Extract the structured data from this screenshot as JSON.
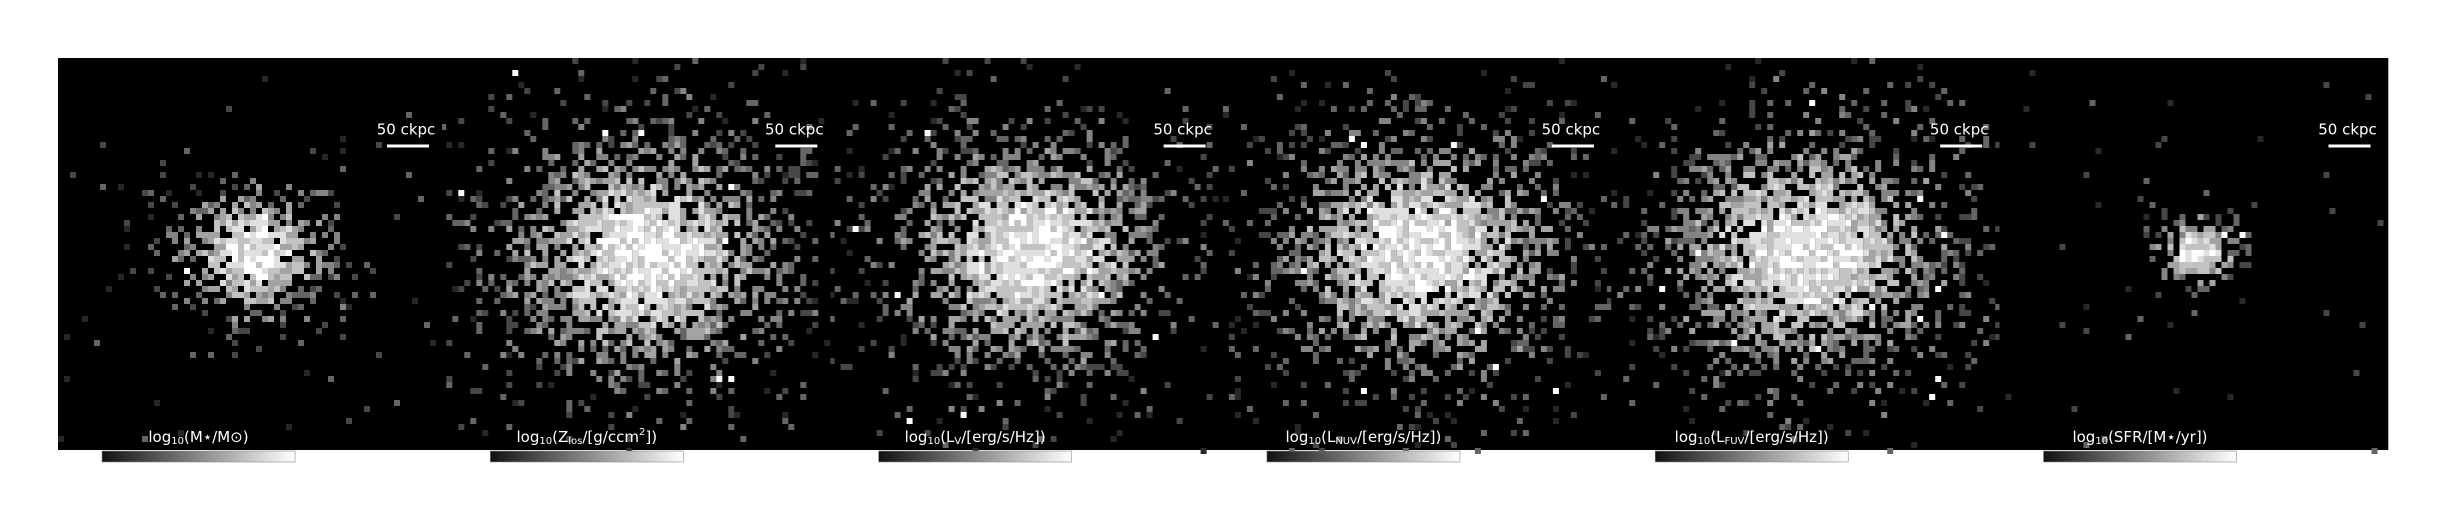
{
  "panels": [
    {
      "scalebar": "50 ckpc",
      "colorbar": {
        "label": [
          {
            "text": "log"
          },
          {
            "text": "10",
            "sub": true
          },
          {
            "text": "(M⋆/M⊙)"
          }
        ],
        "lim": [
          6.1,
          10.4
        ],
        "ticks": [
          8,
          10
        ]
      }
    },
    {
      "scalebar": "50 ckpc",
      "colorbar": {
        "label": [
          {
            "text": "log"
          },
          {
            "text": "10",
            "sub": true
          },
          {
            "text": "(Z"
          },
          {
            "text": "los",
            "sub": true
          },
          {
            "text": "/[g/ccm"
          },
          {
            "text": "2",
            "sup": true
          },
          {
            "text": "])"
          }
        ],
        "lim": [
          -10.6,
          2.0
        ],
        "ticks": [
          {
            "value": -10,
            "label": "−10"
          },
          {
            "value": -5,
            "label": "−5"
          },
          0
        ]
      }
    },
    {
      "scalebar": "50 ckpc",
      "colorbar": {
        "label": [
          {
            "text": "log"
          },
          {
            "text": "10",
            "sub": true
          },
          {
            "text": "(L"
          },
          {
            "text": "V",
            "sub": true
          },
          {
            "text": "/[erg/s/Hz])"
          }
        ],
        "lim": [
          25.16,
          28.0
        ],
        "ticks": [
          26,
          27
        ]
      }
    },
    {
      "scalebar": "50 ckpc",
      "colorbar": {
        "label": [
          {
            "text": "log"
          },
          {
            "text": "10",
            "sub": true
          },
          {
            "text": "(L"
          },
          {
            "text": "NUV",
            "sub": true
          },
          {
            "text": "/[erg/s/Hz])"
          }
        ],
        "lim": [
          24.15,
          27.65
        ],
        "ticks": [
          25,
          26,
          27
        ]
      }
    },
    {
      "scalebar": "50 ckpc",
      "colorbar": {
        "label": [
          {
            "text": "log"
          },
          {
            "text": "10",
            "sub": true
          },
          {
            "text": "(L"
          },
          {
            "text": "FUV",
            "sub": true
          },
          {
            "text": "/[erg/s/Hz])"
          }
        ],
        "lim": [
          23.7,
          27.6
        ],
        "ticks": [
          24,
          26
        ]
      }
    },
    {
      "scalebar": "50 ckpc",
      "colorbar": {
        "label": [
          {
            "text": "log"
          },
          {
            "text": "10",
            "sub": true
          },
          {
            "text": "(SFR/[M⋆/yr])"
          }
        ],
        "lim": [
          2.1,
          5.6
        ],
        "ticks": [
          3,
          4,
          5
        ]
      }
    }
  ]
}
